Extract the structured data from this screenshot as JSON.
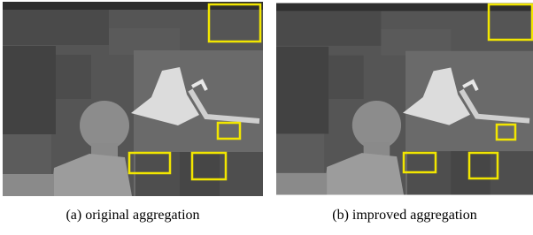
{
  "figures": [
    {
      "caption": "(a) original aggregation"
    },
    {
      "caption": "(b) improved aggregation"
    }
  ]
}
